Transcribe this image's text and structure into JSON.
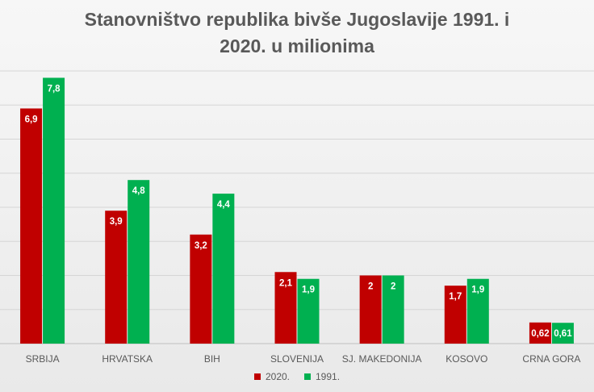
{
  "chart_data": {
    "type": "bar",
    "title_line1": "Stanovništvo republika bivše Jugoslavije 1991. i",
    "title_line2": "2020. u milionima",
    "categories": [
      "SRBIJA",
      "HRVATSKA",
      "BIH",
      "SLOVENIJA",
      "SJ. MAKEDONIJA",
      "KOSOVO",
      "CRNA GORA"
    ],
    "series": [
      {
        "name": "2020.",
        "color": "#c00000",
        "values": [
          6.9,
          3.9,
          3.2,
          2.1,
          2,
          1.7,
          0.62
        ],
        "labels": [
          "6,9",
          "3,9",
          "3,2",
          "2,1",
          "2",
          "1,7",
          "0,62"
        ]
      },
      {
        "name": "1991.",
        "color": "#00b050",
        "values": [
          7.8,
          4.8,
          4.4,
          1.9,
          2,
          1.9,
          0.61
        ],
        "labels": [
          "7,8",
          "4,8",
          "4,4",
          "1,9",
          "2",
          "1,9",
          "0,61"
        ]
      }
    ],
    "ylim": [
      0,
      8
    ],
    "grid": true,
    "legend_position": "bottom"
  }
}
